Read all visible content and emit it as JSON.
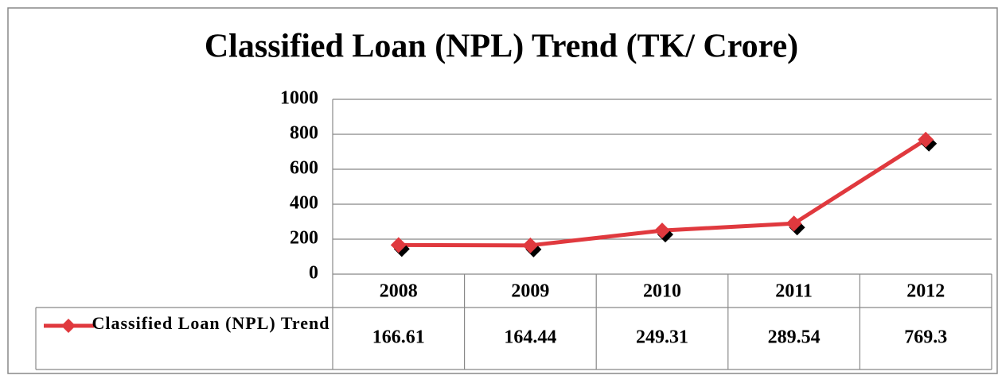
{
  "chart_data": {
    "type": "line",
    "title": "Classified Loan (NPL) Trend (TK/ Crore)",
    "categories": [
      "2008",
      "2009",
      "2010",
      "2011",
      "2012"
    ],
    "series": [
      {
        "name": "Classified Loan (NPL) Trend",
        "color": "#e0393e",
        "values": [
          166.61,
          164.44,
          249.31,
          289.54,
          769.3
        ]
      }
    ],
    "ylim": [
      0,
      1000
    ],
    "yticks": [
      0,
      200,
      400,
      600,
      800,
      1000
    ],
    "grid": true,
    "data_table": true
  }
}
